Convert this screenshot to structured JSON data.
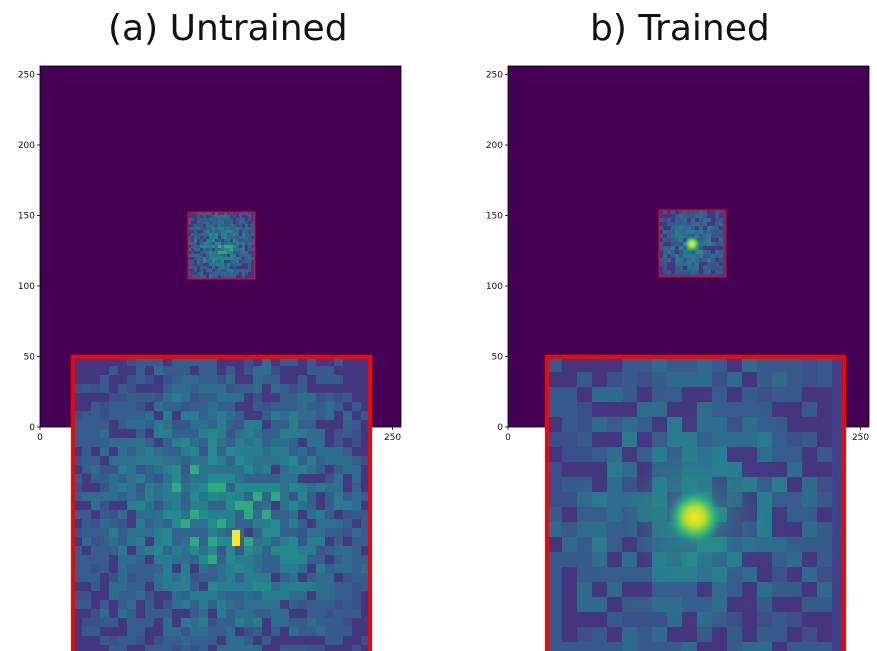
{
  "panels": [
    {
      "title": "(a) Untrained",
      "x_ticks": [
        "0",
        "250"
      ],
      "y_ticks": [
        "0",
        "50",
        "100",
        "150",
        "200",
        "250"
      ],
      "colormap": "viridis",
      "background_color": "#440154",
      "highlight_box_color": "#ff0000",
      "pattern": "diffuse speckle",
      "peak": "single bright yellow pixel"
    },
    {
      "title": "b) Trained",
      "x_ticks": [
        "0",
        "250"
      ],
      "y_ticks": [
        "0",
        "50",
        "100",
        "150",
        "200",
        "250"
      ],
      "colormap": "viridis",
      "background_color": "#440154",
      "highlight_box_color": "#ff0000",
      "pattern": "concentrated central spot",
      "peak": "bright yellow cluster at center"
    }
  ]
}
